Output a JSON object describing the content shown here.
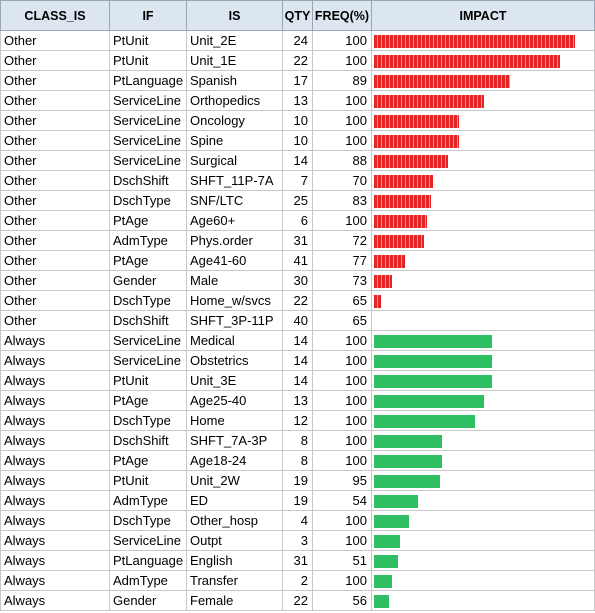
{
  "headers": [
    "CLASS_IS",
    "IF",
    "IS",
    "QTY",
    "FREQ(%)",
    "IMPACT"
  ],
  "colors": {
    "other_bar": "#e52525",
    "always_bar": "#2ebf62",
    "header_bg": "#dce6f1"
  },
  "rows": [
    {
      "class_is": "Other",
      "if": "PtUnit",
      "is": "Unit_2E",
      "qty": "24",
      "freq": "100",
      "impact": 0.92
    },
    {
      "class_is": "Other",
      "if": "PtUnit",
      "is": "Unit_1E",
      "qty": "22",
      "freq": "100",
      "impact": 0.85
    },
    {
      "class_is": "Other",
      "if": "PtLanguage",
      "is": "Spanish",
      "qty": "17",
      "freq": "89",
      "impact": 0.62
    },
    {
      "class_is": "Other",
      "if": "ServiceLine",
      "is": "Orthopedics",
      "qty": "13",
      "freq": "100",
      "impact": 0.5
    },
    {
      "class_is": "Other",
      "if": "ServiceLine",
      "is": "Oncology",
      "qty": "10",
      "freq": "100",
      "impact": 0.39
    },
    {
      "class_is": "Other",
      "if": "ServiceLine",
      "is": "Spine",
      "qty": "10",
      "freq": "100",
      "impact": 0.39
    },
    {
      "class_is": "Other",
      "if": "ServiceLine",
      "is": "Surgical",
      "qty": "14",
      "freq": "88",
      "impact": 0.34
    },
    {
      "class_is": "Other",
      "if": "DschShift",
      "is": "SHFT_11P-7A",
      "qty": "7",
      "freq": "70",
      "impact": 0.27
    },
    {
      "class_is": "Other",
      "if": "DschType",
      "is": "SNF/LTC",
      "qty": "25",
      "freq": "83",
      "impact": 0.26
    },
    {
      "class_is": "Other",
      "if": "PtAge",
      "is": "Age60+",
      "qty": "6",
      "freq": "100",
      "impact": 0.24
    },
    {
      "class_is": "Other",
      "if": "AdmType",
      "is": "Phys.order",
      "qty": "31",
      "freq": "72",
      "impact": 0.23
    },
    {
      "class_is": "Other",
      "if": "PtAge",
      "is": "Age41-60",
      "qty": "41",
      "freq": "77",
      "impact": 0.14
    },
    {
      "class_is": "Other",
      "if": "Gender",
      "is": "Male",
      "qty": "30",
      "freq": "73",
      "impact": 0.08
    },
    {
      "class_is": "Other",
      "if": "DschType",
      "is": "Home_w/svcs",
      "qty": "22",
      "freq": "65",
      "impact": 0.03
    },
    {
      "class_is": "Other",
      "if": "DschShift",
      "is": "SHFT_3P-11P",
      "qty": "40",
      "freq": "65",
      "impact": 0.0
    },
    {
      "class_is": "Always",
      "if": "ServiceLine",
      "is": "Medical",
      "qty": "14",
      "freq": "100",
      "impact": 0.54
    },
    {
      "class_is": "Always",
      "if": "ServiceLine",
      "is": "Obstetrics",
      "qty": "14",
      "freq": "100",
      "impact": 0.54
    },
    {
      "class_is": "Always",
      "if": "PtUnit",
      "is": "Unit_3E",
      "qty": "14",
      "freq": "100",
      "impact": 0.54
    },
    {
      "class_is": "Always",
      "if": "PtAge",
      "is": "Age25-40",
      "qty": "13",
      "freq": "100",
      "impact": 0.5
    },
    {
      "class_is": "Always",
      "if": "DschType",
      "is": "Home",
      "qty": "12",
      "freq": "100",
      "impact": 0.46
    },
    {
      "class_is": "Always",
      "if": "DschShift",
      "is": "SHFT_7A-3P",
      "qty": "8",
      "freq": "100",
      "impact": 0.31
    },
    {
      "class_is": "Always",
      "if": "PtAge",
      "is": "Age18-24",
      "qty": "8",
      "freq": "100",
      "impact": 0.31
    },
    {
      "class_is": "Always",
      "if": "PtUnit",
      "is": "Unit_2W",
      "qty": "19",
      "freq": "95",
      "impact": 0.3
    },
    {
      "class_is": "Always",
      "if": "AdmType",
      "is": "ED",
      "qty": "19",
      "freq": "54",
      "impact": 0.2
    },
    {
      "class_is": "Always",
      "if": "DschType",
      "is": "Other_hosp",
      "qty": "4",
      "freq": "100",
      "impact": 0.16
    },
    {
      "class_is": "Always",
      "if": "ServiceLine",
      "is": "Outpt",
      "qty": "3",
      "freq": "100",
      "impact": 0.12
    },
    {
      "class_is": "Always",
      "if": "PtLanguage",
      "is": "English",
      "qty": "31",
      "freq": "51",
      "impact": 0.11
    },
    {
      "class_is": "Always",
      "if": "AdmType",
      "is": "Transfer",
      "qty": "2",
      "freq": "100",
      "impact": 0.08
    },
    {
      "class_is": "Always",
      "if": "Gender",
      "is": "Female",
      "qty": "22",
      "freq": "56",
      "impact": 0.07
    }
  ]
}
